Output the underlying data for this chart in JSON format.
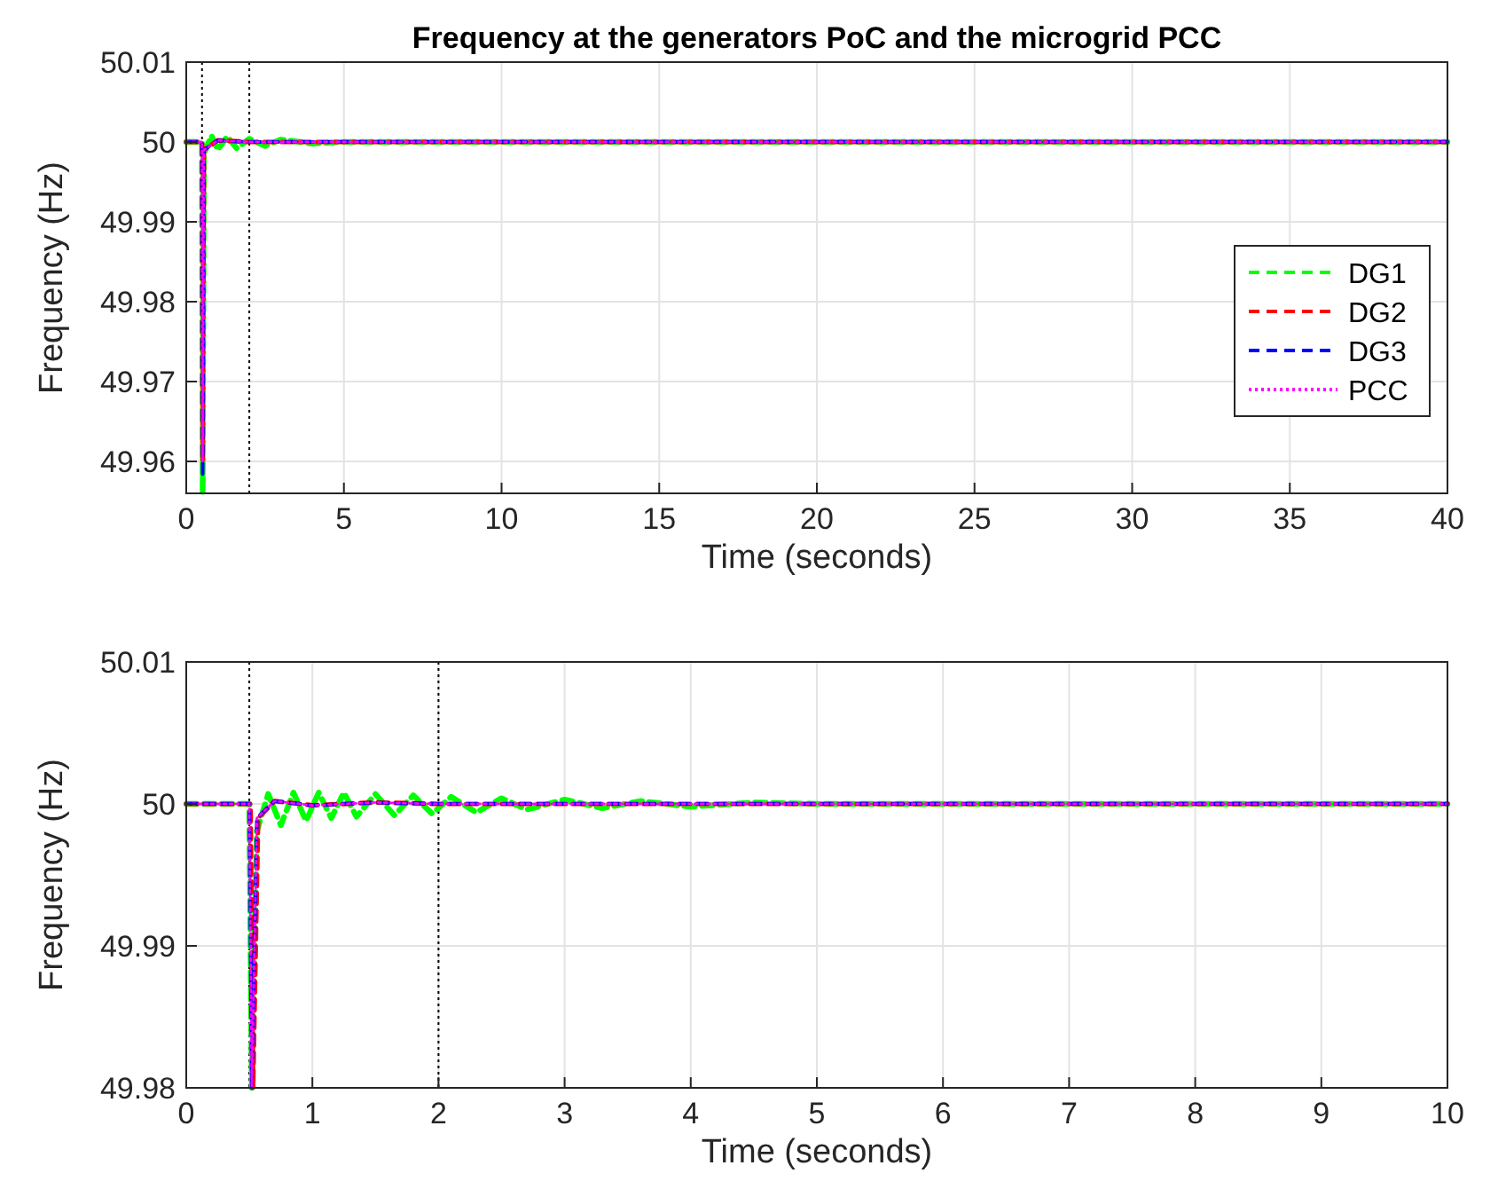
{
  "chart_data": [
    {
      "type": "line",
      "title": "Frequency at the generators PoC and the microgrid PCC",
      "xlabel": "Time (seconds)",
      "ylabel": "Frequency (Hz)",
      "xlim": [
        0,
        40
      ],
      "xticks": [
        0,
        5,
        10,
        15,
        20,
        25,
        30,
        35,
        40
      ],
      "ylim": [
        49.956,
        50.01
      ],
      "yticks": [
        49.96,
        49.97,
        49.98,
        49.99,
        50,
        50.01
      ],
      "grid": true,
      "legend": "right",
      "series": [
        {
          "name": "DG1",
          "color": "#00ff00",
          "line_style": "dashed",
          "x": [
            0,
            0.5,
            0.52,
            0.56,
            0.8,
            1,
            1.3,
            1.6,
            2,
            2.5,
            3,
            4,
            5,
            40
          ],
          "values": [
            50,
            50,
            49.956,
            49.9985,
            50.0008,
            49.999,
            50.0007,
            49.9992,
            50.0004,
            49.9995,
            50.0003,
            49.9998,
            50,
            50
          ]
        },
        {
          "name": "DG2",
          "color": "#ff0000",
          "line_style": "dashed",
          "x": [
            0,
            0.5,
            0.52,
            0.56,
            1,
            2,
            40
          ],
          "values": [
            50,
            50,
            49.96,
            49.999,
            50.0002,
            50,
            50
          ]
        },
        {
          "name": "DG3",
          "color": "#0000ff",
          "line_style": "dashed",
          "x": [
            0,
            0.5,
            0.52,
            0.56,
            1,
            2,
            40
          ],
          "values": [
            50,
            50,
            49.958,
            49.999,
            50.0002,
            50,
            50
          ]
        },
        {
          "name": "PCC",
          "color": "#ff00ff",
          "line_style": "dotted",
          "x": [
            0,
            0.5,
            0.52,
            0.56,
            1,
            2,
            40
          ],
          "values": [
            50,
            50,
            49.96,
            49.999,
            50.0002,
            50,
            50
          ]
        }
      ],
      "ref_lines": [
        {
          "axis": "x",
          "value": 0.5,
          "color": "#000000",
          "line_style": "dotted"
        },
        {
          "axis": "x",
          "value": 2,
          "color": "#000000",
          "line_style": "dotted"
        }
      ]
    },
    {
      "type": "line",
      "xlabel": "Time (seconds)",
      "ylabel": "Frequency (Hz)",
      "xlim": [
        0,
        10
      ],
      "xticks": [
        0,
        1,
        2,
        3,
        4,
        5,
        6,
        7,
        8,
        9,
        10
      ],
      "ylim": [
        49.98,
        50.01
      ],
      "yticks": [
        49.98,
        49.99,
        50,
        50.01
      ],
      "grid": true,
      "series": [
        {
          "color": "#00ff00",
          "line_style": "dashed",
          "x": [
            0,
            0.5,
            0.52,
            0.56,
            0.65,
            0.75,
            0.85,
            0.95,
            1.05,
            1.15,
            1.25,
            1.35,
            1.5,
            1.65,
            1.8,
            1.95,
            2.1,
            2.3,
            2.5,
            2.7,
            3,
            3.3,
            3.6,
            4,
            4.5,
            5,
            10
          ],
          "values": [
            50,
            50,
            49.98,
            49.9981,
            50.0007,
            49.9985,
            50.0008,
            49.9988,
            50.0008,
            49.999,
            50.0008,
            49.9991,
            50.0007,
            49.9992,
            50.0006,
            49.9993,
            50.0005,
            49.9994,
            50.0004,
            49.9996,
            50.0003,
            49.9997,
            50.0002,
            49.9998,
            50.0001,
            50,
            50
          ]
        },
        {
          "color": "#ff0000",
          "line_style": "dashed",
          "x": [
            0,
            0.51,
            0.53,
            0.57,
            0.7,
            1,
            1.5,
            2,
            10
          ],
          "values": [
            50,
            50,
            49.98,
            49.999,
            50.0002,
            49.9999,
            50.0001,
            50,
            50
          ]
        },
        {
          "color": "#0000ff",
          "line_style": "dashed",
          "x": [
            0,
            0.5,
            0.52,
            0.56,
            0.7,
            1,
            1.5,
            2,
            10
          ],
          "values": [
            50,
            50,
            49.98,
            49.999,
            50.0002,
            49.9999,
            50.0001,
            50,
            50
          ]
        },
        {
          "color": "#ff00ff",
          "line_style": "dotted",
          "x": [
            0,
            0.5,
            0.52,
            0.56,
            0.7,
            1,
            1.5,
            2,
            10
          ],
          "values": [
            50,
            50,
            49.98,
            49.999,
            50.0002,
            49.9999,
            50.0001,
            50,
            50
          ]
        }
      ],
      "ref_lines": [
        {
          "axis": "x",
          "value": 0.5,
          "color": "#000000",
          "line_style": "dotted"
        },
        {
          "axis": "x",
          "value": 2,
          "color": "#000000",
          "line_style": "dotted"
        }
      ]
    }
  ]
}
